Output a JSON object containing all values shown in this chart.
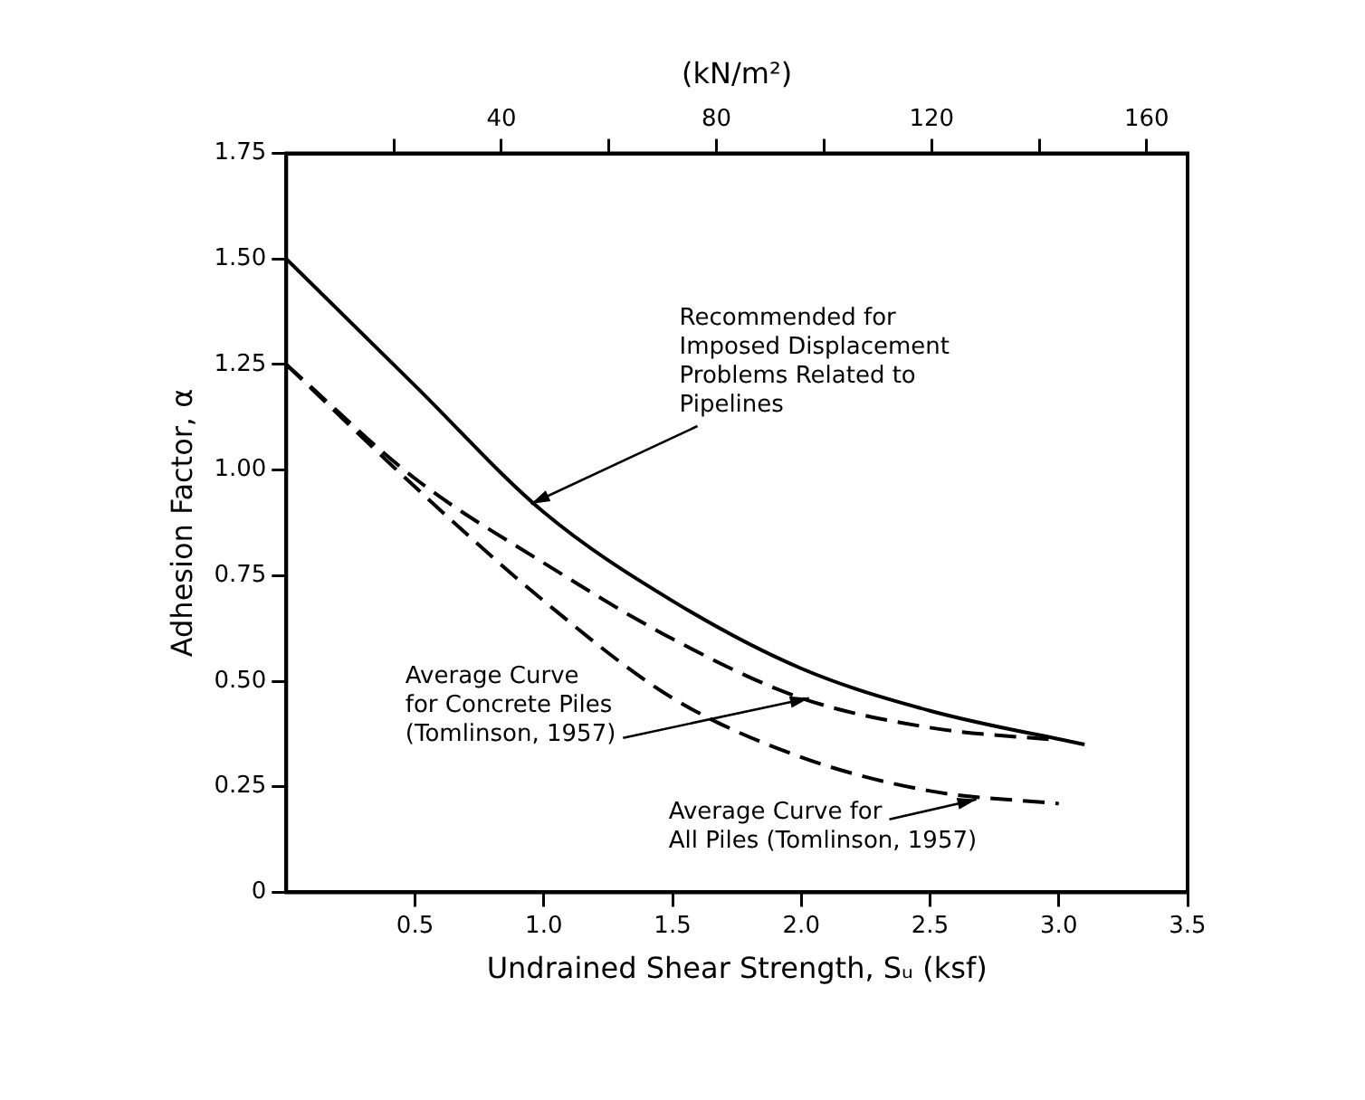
{
  "chart_data": {
    "type": "line",
    "xlabel": "Undrained Shear Strength, Sᵤ (ksf)",
    "ylabel": "Adhesion Factor, α",
    "x2label": "(kN/m²)",
    "xlim": [
      0,
      3.5
    ],
    "xticks": [
      0.5,
      {
        "value": 1.0,
        "label": "1.0"
      },
      1.5,
      {
        "value": 2.0,
        "label": "2.0"
      },
      2.5,
      {
        "value": 3.0,
        "label": "3.0"
      },
      3.5
    ],
    "x2lim": [
      0,
      167.6
    ],
    "x2ticks": [
      {
        "value": 20,
        "label": null
      },
      40,
      {
        "value": 60,
        "label": null
      },
      80,
      {
        "value": 100,
        "label": null
      },
      120,
      {
        "value": 140,
        "label": null
      },
      160
    ],
    "ylim": [
      0,
      1.75
    ],
    "yticks": [
      0,
      {
        "value": 0.25,
        "label": "0.25"
      },
      {
        "value": 0.5,
        "label": "0.50"
      },
      {
        "value": 0.75,
        "label": "0.75"
      },
      {
        "value": 1.0,
        "label": "1.00"
      },
      {
        "value": 1.25,
        "label": "1.25"
      },
      {
        "value": 1.5,
        "label": "1.50"
      },
      1.75
    ],
    "grid": false,
    "legend": false,
    "marker": "none",
    "series": [
      {
        "color": "#000000",
        "line_style": "solid",
        "x": [
          0,
          0.5,
          1.0,
          1.5,
          2.0,
          2.5,
          3.1
        ],
        "values": [
          1.5,
          1.2,
          0.9,
          0.69,
          0.53,
          0.43,
          0.35
        ]
      },
      {
        "color": "#000000",
        "line_style": "dashed",
        "x": [
          0,
          0.5,
          1.0,
          1.5,
          2.0,
          2.5,
          3.0
        ],
        "values": [
          1.25,
          0.98,
          0.78,
          0.6,
          0.46,
          0.39,
          0.36
        ]
      },
      {
        "color": "#000000",
        "line_style": "dashed",
        "x": [
          0,
          0.5,
          1.0,
          1.5,
          2.0,
          2.5,
          3.0
        ],
        "values": [
          1.25,
          0.96,
          0.69,
          0.46,
          0.32,
          0.24,
          0.21
        ]
      }
    ],
    "annotations": [
      {
        "text": "Recommended for\nImposed Displacement\nProblems Related to\nPipelines",
        "x": 0.95,
        "y": 0.92
      },
      {
        "text": "Average Curve\nfor Concrete Piles\n(Tomlinson, 1957)",
        "x": 2.03,
        "y": 0.46
      },
      {
        "text": "Average Curve for\nAll Piles (Tomlinson, 1957)",
        "x": 2.68,
        "y": 0.22
      }
    ]
  }
}
